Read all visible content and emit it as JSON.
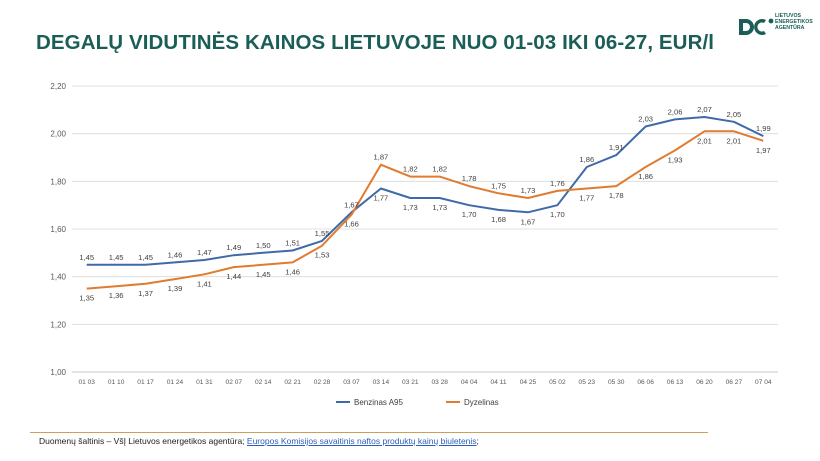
{
  "title": "DEGALŲ VIDUTINĖS KAINOS LIETUVOJE NUO 01-03 IKI 06-27, EUR/l",
  "logo": {
    "lines": [
      "LIETUVOS",
      "ENERGETIKOS",
      "AGENTŪRA"
    ],
    "mark_color": "#1a5e57"
  },
  "footer": {
    "source_prefix": "Duomenų šaltinis – VšĮ Lietuvos energetikos agentūra; ",
    "link_text": "Europos Komisijos savaitinis naftos produktų kainų biuletenis",
    "suffix": ";"
  },
  "chart_data": {
    "type": "line",
    "categories": [
      "01 03",
      "01 10",
      "01 17",
      "01 24",
      "01 31",
      "02 07",
      "02 14",
      "02 21",
      "02 28",
      "03 07",
      "03 14",
      "03 21",
      "03 28",
      "04 04",
      "04 11",
      "04 25",
      "05 02",
      "05 23",
      "05 30",
      "06 06",
      "06 13",
      "06 20",
      "06 27",
      "07 04"
    ],
    "ylim": [
      1.0,
      2.2
    ],
    "yticks": [
      "1,00",
      "1,20",
      "1,40",
      "1,60",
      "1,80",
      "2,00",
      "2,20"
    ],
    "ytick_values": [
      1.0,
      1.2,
      1.4,
      1.6,
      1.8,
      2.0,
      2.2
    ],
    "grid": true,
    "legend_position": "bottom",
    "series": [
      {
        "name": "Benzinas A95",
        "color": "#3f6aa8",
        "values": [
          1.45,
          1.45,
          1.45,
          1.46,
          1.47,
          1.49,
          1.5,
          1.51,
          1.55,
          1.67,
          1.77,
          1.73,
          1.73,
          1.7,
          1.68,
          1.67,
          1.7,
          1.86,
          1.91,
          2.03,
          2.06,
          2.07,
          2.05,
          1.99
        ],
        "labels": [
          "1,45",
          "1,45",
          "1,45",
          "1,46",
          "1,47",
          "1,49",
          "1,50",
          "1,51",
          "1,55",
          "1,67",
          "1,77",
          "1,73",
          "1,73",
          "1,70",
          "1,68",
          "1,67",
          "1,70",
          "1,86",
          "1,91",
          "2,03",
          "2,06",
          "2,07",
          "2,05",
          "1,99"
        ]
      },
      {
        "name": "Dyzelinas",
        "color": "#e07b2f",
        "values": [
          1.35,
          1.36,
          1.37,
          1.39,
          1.41,
          1.44,
          1.45,
          1.46,
          1.53,
          1.66,
          1.87,
          1.82,
          1.82,
          1.78,
          1.75,
          1.73,
          1.76,
          1.77,
          1.78,
          1.86,
          1.93,
          2.01,
          2.01,
          1.97
        ],
        "labels": [
          "1,35",
          "1,36",
          "1,37",
          "1,39",
          "1,41",
          "1,44",
          "1,45",
          "1,46",
          "1,53",
          "1,66",
          "1,87",
          "1,82",
          "1,82",
          "1,78",
          "1,75",
          "1,73",
          "1,76",
          "1,77",
          "1,78",
          "1,86",
          "1,93",
          "2,01",
          "2,01",
          "1,97"
        ]
      }
    ]
  }
}
